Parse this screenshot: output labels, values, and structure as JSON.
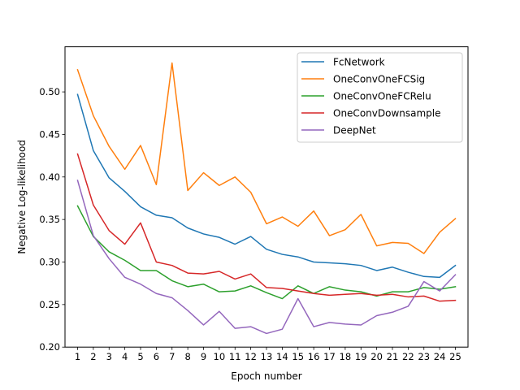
{
  "chart_data": {
    "type": "line",
    "title": "",
    "xlabel": "Epoch number",
    "ylabel": "Negative Log-likelihood",
    "x": [
      1,
      2,
      3,
      4,
      5,
      6,
      7,
      8,
      9,
      10,
      11,
      12,
      13,
      14,
      15,
      16,
      17,
      18,
      19,
      20,
      21,
      22,
      23,
      24,
      25
    ],
    "xlim": [
      0.2,
      25.8
    ],
    "ylim": [
      0.2,
      0.553
    ],
    "yticks": [
      0.2,
      0.25,
      0.3,
      0.35,
      0.4,
      0.45,
      0.5
    ],
    "ytick_labels": [
      "0.20",
      "0.25",
      "0.30",
      "0.35",
      "0.40",
      "0.45",
      "0.50"
    ],
    "xtick_labels": [
      "1",
      "2",
      "3",
      "4",
      "5",
      "6",
      "7",
      "8",
      "9",
      "10",
      "11",
      "12",
      "13",
      "14",
      "15",
      "16",
      "17",
      "18",
      "19",
      "20",
      "21",
      "22",
      "23",
      "24",
      "25"
    ],
    "grid": false,
    "legend_position": "top-right",
    "series": [
      {
        "name": "FcNetwork",
        "color": "#1f77b4",
        "values": [
          0.497,
          0.431,
          0.399,
          0.383,
          0.365,
          0.355,
          0.352,
          0.34,
          0.333,
          0.329,
          0.321,
          0.33,
          0.315,
          0.309,
          0.306,
          0.3,
          0.299,
          0.298,
          0.296,
          0.29,
          0.294,
          0.288,
          0.283,
          0.282,
          0.296
        ]
      },
      {
        "name": "OneConvOneFCSig",
        "color": "#ff7f0e",
        "values": [
          0.526,
          0.472,
          0.436,
          0.409,
          0.437,
          0.391,
          0.534,
          0.384,
          0.405,
          0.39,
          0.4,
          0.382,
          0.345,
          0.353,
          0.342,
          0.36,
          0.331,
          0.338,
          0.356,
          0.319,
          0.323,
          0.322,
          0.31,
          0.335,
          0.351
        ]
      },
      {
        "name": "OneConvOneFCRelu",
        "color": "#2ca02c",
        "values": [
          0.366,
          0.33,
          0.312,
          0.302,
          0.29,
          0.29,
          0.278,
          0.271,
          0.274,
          0.265,
          0.266,
          0.272,
          0.264,
          0.257,
          0.272,
          0.263,
          0.271,
          0.267,
          0.265,
          0.26,
          0.265,
          0.265,
          0.27,
          0.268,
          0.271
        ]
      },
      {
        "name": "OneConvDownsample",
        "color": "#d62728",
        "values": [
          0.427,
          0.367,
          0.337,
          0.321,
          0.346,
          0.3,
          0.296,
          0.287,
          0.286,
          0.289,
          0.28,
          0.286,
          0.27,
          0.269,
          0.266,
          0.263,
          0.261,
          0.262,
          0.263,
          0.261,
          0.262,
          0.259,
          0.26,
          0.254,
          0.255
        ]
      },
      {
        "name": "DeepNet",
        "color": "#9467bd",
        "values": [
          0.396,
          0.331,
          0.304,
          0.282,
          0.274,
          0.263,
          0.258,
          0.243,
          0.226,
          0.242,
          0.222,
          0.224,
          0.216,
          0.221,
          0.257,
          0.224,
          0.229,
          0.227,
          0.226,
          0.237,
          0.241,
          0.248,
          0.277,
          0.266,
          0.285
        ]
      }
    ]
  }
}
